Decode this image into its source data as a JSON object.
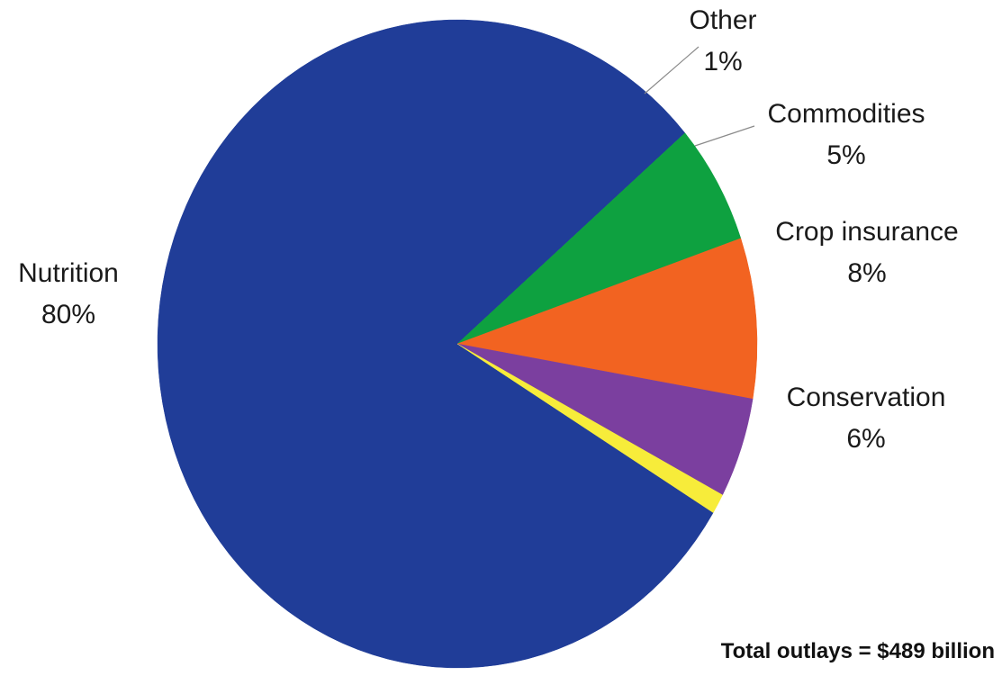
{
  "chart_data": {
    "type": "pie",
    "title": "",
    "note": "Total outlays = $489 billion",
    "slices": [
      {
        "label": "Nutrition",
        "value": 80,
        "value_label": "80%",
        "color": "#203d98"
      },
      {
        "label": "Conservation",
        "value": 6,
        "value_label": "6%",
        "color": "#0ea140"
      },
      {
        "label": "Crop insurance",
        "value": 8,
        "value_label": "8%",
        "color": "#f26321"
      },
      {
        "label": "Commodities",
        "value": 5,
        "value_label": "5%",
        "color": "#7b3f9f"
      },
      {
        "label": "Other",
        "value": 1,
        "value_label": "1%",
        "color": "#f7ec3a"
      }
    ],
    "legend": "none",
    "labels": "outside"
  }
}
